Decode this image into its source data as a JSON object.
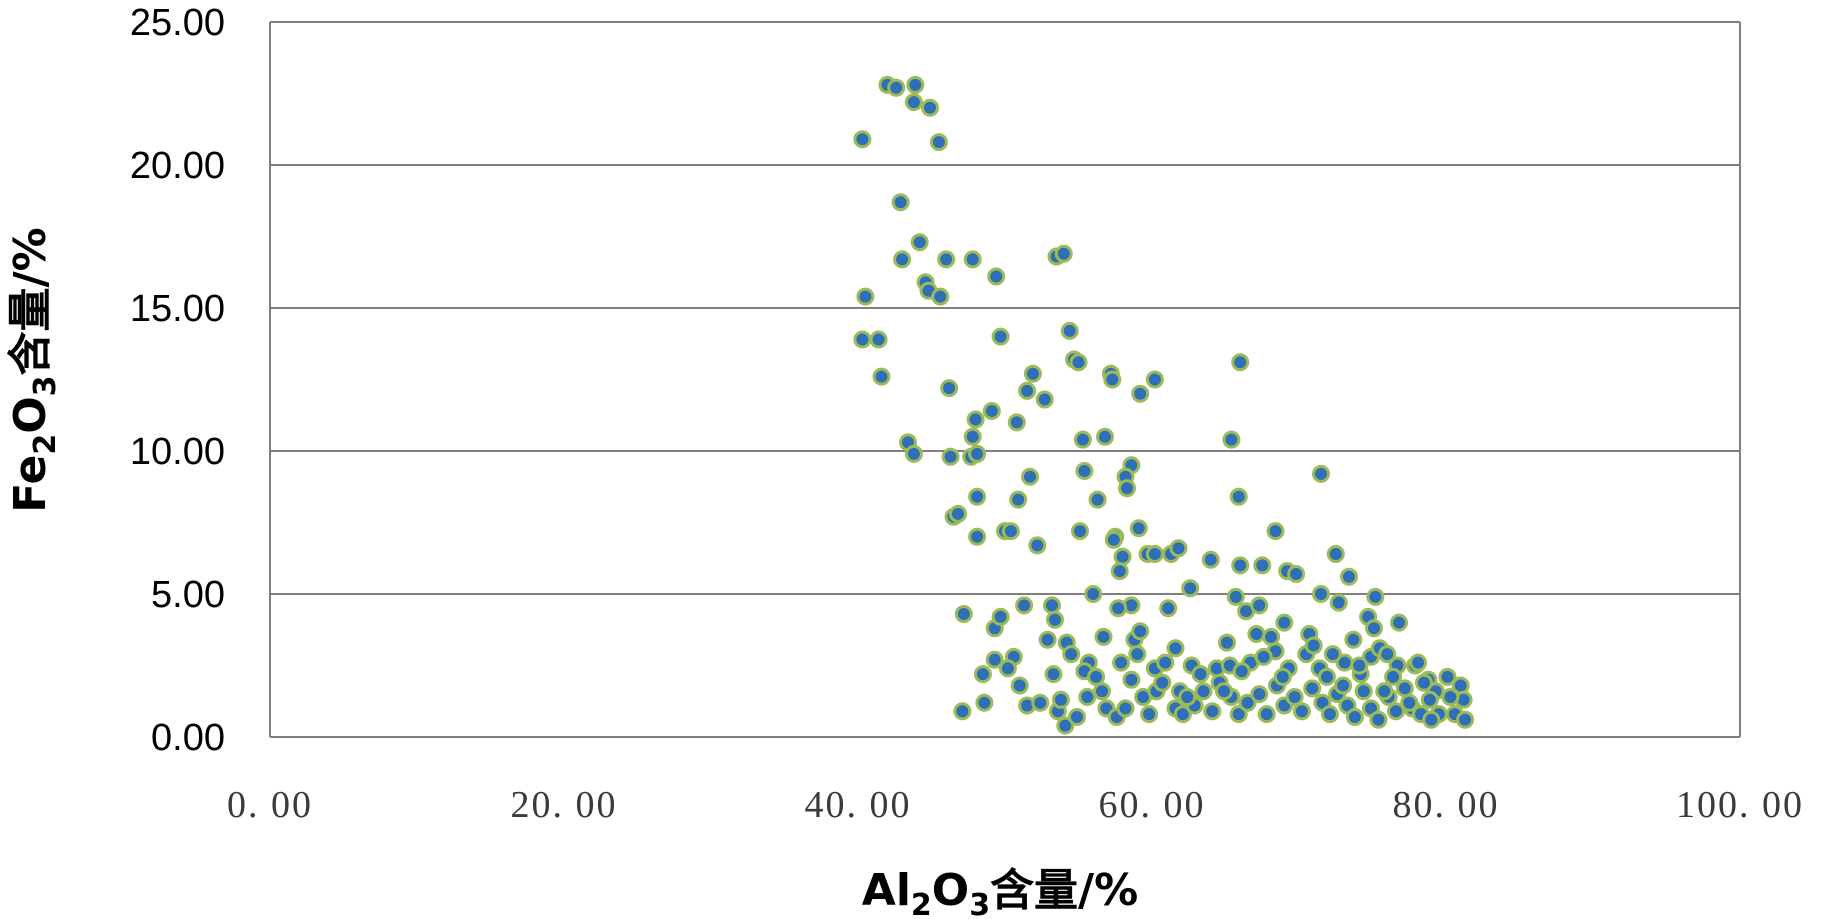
{
  "chart_data": {
    "type": "scatter",
    "xlim": [
      0,
      100
    ],
    "ylim": [
      0,
      25
    ],
    "x_ticks": [
      "0. 00",
      "20. 00",
      "40. 00",
      "60. 00",
      "80. 00",
      "100. 00"
    ],
    "y_ticks": [
      "0.00",
      "5.00",
      "10.00",
      "15.00",
      "20.00",
      "25.00"
    ],
    "xlabel": {
      "pre": "Al",
      "sub1": "2",
      "mid": "O",
      "sub2": "3",
      "post": "含量/%"
    },
    "ylabel": {
      "pre": "Fe",
      "sub1": "2",
      "mid": "O",
      "sub2": "3",
      "post": "含量/%"
    },
    "grid": {
      "horizontal": true,
      "vertical": false
    },
    "colors": {
      "marker_fill": "#2E6FB7",
      "marker_stroke": "#9BBB59",
      "grid": "#7f7f7f",
      "axis": "#7f7f7f"
    },
    "series": [
      {
        "points": [
          [
            40.3,
            20.9
          ],
          [
            42.0,
            22.8
          ],
          [
            42.6,
            22.7
          ],
          [
            43.9,
            22.8
          ],
          [
            43.8,
            22.2
          ],
          [
            44.9,
            22.0
          ],
          [
            45.5,
            20.8
          ],
          [
            42.9,
            18.7
          ],
          [
            43.0,
            16.7
          ],
          [
            44.2,
            17.3
          ],
          [
            44.6,
            15.9
          ],
          [
            44.8,
            15.6
          ],
          [
            45.6,
            15.4
          ],
          [
            46.0,
            16.7
          ],
          [
            47.8,
            16.7
          ],
          [
            49.4,
            16.1
          ],
          [
            53.5,
            16.8
          ],
          [
            54.0,
            16.9
          ],
          [
            40.5,
            15.4
          ],
          [
            40.3,
            13.9
          ],
          [
            41.4,
            13.9
          ],
          [
            41.6,
            12.6
          ],
          [
            46.2,
            12.2
          ],
          [
            49.7,
            14.0
          ],
          [
            54.4,
            14.2
          ],
          [
            54.7,
            13.2
          ],
          [
            55.0,
            13.1
          ],
          [
            57.2,
            12.7
          ],
          [
            57.3,
            12.5
          ],
          [
            51.9,
            12.7
          ],
          [
            51.5,
            12.1
          ],
          [
            52.7,
            11.8
          ],
          [
            59.2,
            12.0
          ],
          [
            60.2,
            12.5
          ],
          [
            66.0,
            13.1
          ],
          [
            43.4,
            10.3
          ],
          [
            43.8,
            9.9
          ],
          [
            46.3,
            9.8
          ],
          [
            47.7,
            9.8
          ],
          [
            48.1,
            9.9
          ],
          [
            47.8,
            10.5
          ],
          [
            48.0,
            11.1
          ],
          [
            49.1,
            11.4
          ],
          [
            50.8,
            11.0
          ],
          [
            55.3,
            10.4
          ],
          [
            56.8,
            10.5
          ],
          [
            55.4,
            9.3
          ],
          [
            58.6,
            9.5
          ],
          [
            58.2,
            9.1
          ],
          [
            58.3,
            8.7
          ],
          [
            58.0,
            6.3
          ],
          [
            56.3,
            8.3
          ],
          [
            65.4,
            10.4
          ],
          [
            65.9,
            8.4
          ],
          [
            71.5,
            9.2
          ],
          [
            51.7,
            9.1
          ],
          [
            50.9,
            8.3
          ],
          [
            48.1,
            8.4
          ],
          [
            46.5,
            7.7
          ],
          [
            46.8,
            7.8
          ],
          [
            48.1,
            7.0
          ],
          [
            50.0,
            7.2
          ],
          [
            50.4,
            7.2
          ],
          [
            52.2,
            6.7
          ],
          [
            55.1,
            7.2
          ],
          [
            57.5,
            7.0
          ],
          [
            57.4,
            6.9
          ],
          [
            59.1,
            7.3
          ],
          [
            59.7,
            6.4
          ],
          [
            60.2,
            6.4
          ],
          [
            61.3,
            6.4
          ],
          [
            61.8,
            6.6
          ],
          [
            64.0,
            6.2
          ],
          [
            66.0,
            6.0
          ],
          [
            67.5,
            6.0
          ],
          [
            69.2,
            5.8
          ],
          [
            68.4,
            7.2
          ],
          [
            72.5,
            6.4
          ],
          [
            73.4,
            5.6
          ],
          [
            69.8,
            5.7
          ],
          [
            57.8,
            5.8
          ],
          [
            56.0,
            5.0
          ],
          [
            58.6,
            4.6
          ],
          [
            61.1,
            4.5
          ],
          [
            62.6,
            5.2
          ],
          [
            65.7,
            4.9
          ],
          [
            66.4,
            4.4
          ],
          [
            67.3,
            4.6
          ],
          [
            69.0,
            4.0
          ],
          [
            71.5,
            5.0
          ],
          [
            72.7,
            4.7
          ],
          [
            74.7,
            4.2
          ],
          [
            75.2,
            4.9
          ],
          [
            75.1,
            3.8
          ],
          [
            76.8,
            4.0
          ],
          [
            47.2,
            4.3
          ],
          [
            49.3,
            3.8
          ],
          [
            49.7,
            4.2
          ],
          [
            51.3,
            4.6
          ],
          [
            53.2,
            4.6
          ],
          [
            53.4,
            4.1
          ],
          [
            54.2,
            3.3
          ],
          [
            54.5,
            2.9
          ],
          [
            55.7,
            2.6
          ],
          [
            56.7,
            3.5
          ],
          [
            57.7,
            4.5
          ],
          [
            58.8,
            3.4
          ],
          [
            59.2,
            3.7
          ],
          [
            60.2,
            2.4
          ],
          [
            61.6,
            3.1
          ],
          [
            62.7,
            2.5
          ],
          [
            64.4,
            2.4
          ],
          [
            65.3,
            2.5
          ],
          [
            66.7,
            2.6
          ],
          [
            67.1,
            3.6
          ],
          [
            68.4,
            3.0
          ],
          [
            69.3,
            2.4
          ],
          [
            70.7,
            3.6
          ],
          [
            71.4,
            2.4
          ],
          [
            73.1,
            2.6
          ],
          [
            73.7,
            3.4
          ],
          [
            74.9,
            2.8
          ],
          [
            75.5,
            3.1
          ],
          [
            76.7,
            2.5
          ],
          [
            77.9,
            2.5
          ],
          [
            78.8,
            2.0
          ],
          [
            79.3,
            1.6
          ],
          [
            80.1,
            2.1
          ],
          [
            81.0,
            1.8
          ],
          [
            81.2,
            1.3
          ],
          [
            47.1,
            0.9
          ],
          [
            48.6,
            1.2
          ],
          [
            48.5,
            2.2
          ],
          [
            49.3,
            2.7
          ],
          [
            50.6,
            2.8
          ],
          [
            51.0,
            1.8
          ],
          [
            51.5,
            1.1
          ],
          [
            52.4,
            1.2
          ],
          [
            53.3,
            2.2
          ],
          [
            53.6,
            0.9
          ],
          [
            54.1,
            0.4
          ],
          [
            54.9,
            0.7
          ],
          [
            55.6,
            1.4
          ],
          [
            56.6,
            1.6
          ],
          [
            56.9,
            1.0
          ],
          [
            57.6,
            0.7
          ],
          [
            58.2,
            1.0
          ],
          [
            58.6,
            2.0
          ],
          [
            59.4,
            1.4
          ],
          [
            59.8,
            0.8
          ],
          [
            60.3,
            1.6
          ],
          [
            60.7,
            1.9
          ],
          [
            61.6,
            1.0
          ],
          [
            62.1,
            0.8
          ],
          [
            62.9,
            1.1
          ],
          [
            63.5,
            1.6
          ],
          [
            64.1,
            0.9
          ],
          [
            64.6,
            1.9
          ],
          [
            65.4,
            1.4
          ],
          [
            65.9,
            0.8
          ],
          [
            66.5,
            1.2
          ],
          [
            67.3,
            1.5
          ],
          [
            67.8,
            0.8
          ],
          [
            68.5,
            1.8
          ],
          [
            69.0,
            1.1
          ],
          [
            69.7,
            1.4
          ],
          [
            70.2,
            0.9
          ],
          [
            70.9,
            1.7
          ],
          [
            71.6,
            1.2
          ],
          [
            72.1,
            0.8
          ],
          [
            72.6,
            1.5
          ],
          [
            73.3,
            1.1
          ],
          [
            73.8,
            0.7
          ],
          [
            74.4,
            1.6
          ],
          [
            74.9,
            1.0
          ],
          [
            75.4,
            0.6
          ],
          [
            76.1,
            1.4
          ],
          [
            76.6,
            0.9
          ],
          [
            77.2,
            1.7
          ],
          [
            77.7,
            1.0
          ],
          [
            78.3,
            0.8
          ],
          [
            78.9,
            1.3
          ],
          [
            79.5,
            0.8
          ],
          [
            80.3,
            1.4
          ],
          [
            80.6,
            0.8
          ],
          [
            81.3,
            0.6
          ],
          [
            52.9,
            3.4
          ],
          [
            55.4,
            2.3
          ],
          [
            57.9,
            2.6
          ],
          [
            60.9,
            2.6
          ],
          [
            63.3,
            2.2
          ],
          [
            66.1,
            2.3
          ],
          [
            68.9,
            2.1
          ],
          [
            71.9,
            2.1
          ],
          [
            74.2,
            2.2
          ],
          [
            76.4,
            2.1
          ],
          [
            78.5,
            1.9
          ],
          [
            50.2,
            2.4
          ],
          [
            53.8,
            1.3
          ],
          [
            56.2,
            2.1
          ],
          [
            59.0,
            2.9
          ],
          [
            61.9,
            1.6
          ],
          [
            64.9,
            1.6
          ],
          [
            67.6,
            2.8
          ],
          [
            70.5,
            2.9
          ],
          [
            73.0,
            1.8
          ],
          [
            75.8,
            1.6
          ],
          [
            77.5,
            1.2
          ],
          [
            79.0,
            0.6
          ],
          [
            62.4,
            1.4
          ],
          [
            65.1,
            3.3
          ],
          [
            68.1,
            3.5
          ],
          [
            71.0,
            3.2
          ],
          [
            72.3,
            2.9
          ],
          [
            74.1,
            2.5
          ],
          [
            76.0,
            2.9
          ],
          [
            78.1,
            2.6
          ]
        ]
      }
    ]
  }
}
